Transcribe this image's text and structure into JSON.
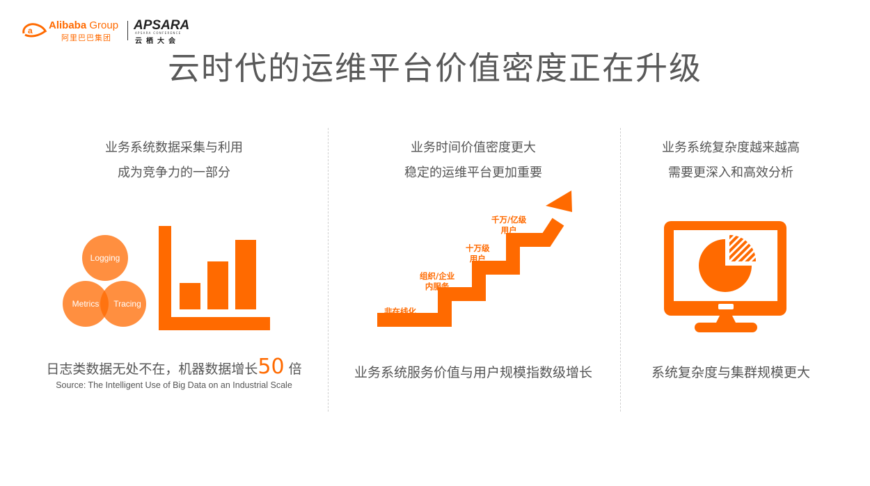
{
  "header": {
    "alibaba_logo_word": "Alibaba",
    "alibaba_logo_group": "Group",
    "alibaba_logo_cn": "阿里巴巴集团",
    "apsara_logo_word": "APSARA",
    "apsara_logo_sub": "APSARA CONFERENCE",
    "apsara_logo_cn": "云栖大会"
  },
  "title": "云时代的运维平台价值密度正在升级",
  "columns": [
    {
      "line1": "业务系统数据采集与利用",
      "line2": "成为竞争力的一部分",
      "circles": [
        "Logging",
        "Metrics",
        "Tracing"
      ],
      "footer_prefix": "日志类数据无处不在，机器数据增长",
      "footer_number": "50",
      "footer_suffix": "倍",
      "source": "Source: The Intelligent Use of Big Data on an Industrial Scale"
    },
    {
      "line1": "业务时间价值密度更大",
      "line2": "稳定的运维平台更加重要",
      "steps": [
        {
          "l1": "非在线化",
          "l2": ""
        },
        {
          "l1": "组织/企业",
          "l2": "内服务"
        },
        {
          "l1": "十万级",
          "l2": "用户"
        },
        {
          "l1": "千万/亿级",
          "l2": "用户"
        }
      ],
      "footer": "业务系统服务价值与用户规模指数级增长"
    },
    {
      "line1": "业务系统复杂度越来越高",
      "line2": "需要更深入和高效分析",
      "footer": "系统复杂度与集群规模更大"
    }
  ],
  "colors": {
    "accent": "#ff6a00",
    "text": "#555555"
  }
}
